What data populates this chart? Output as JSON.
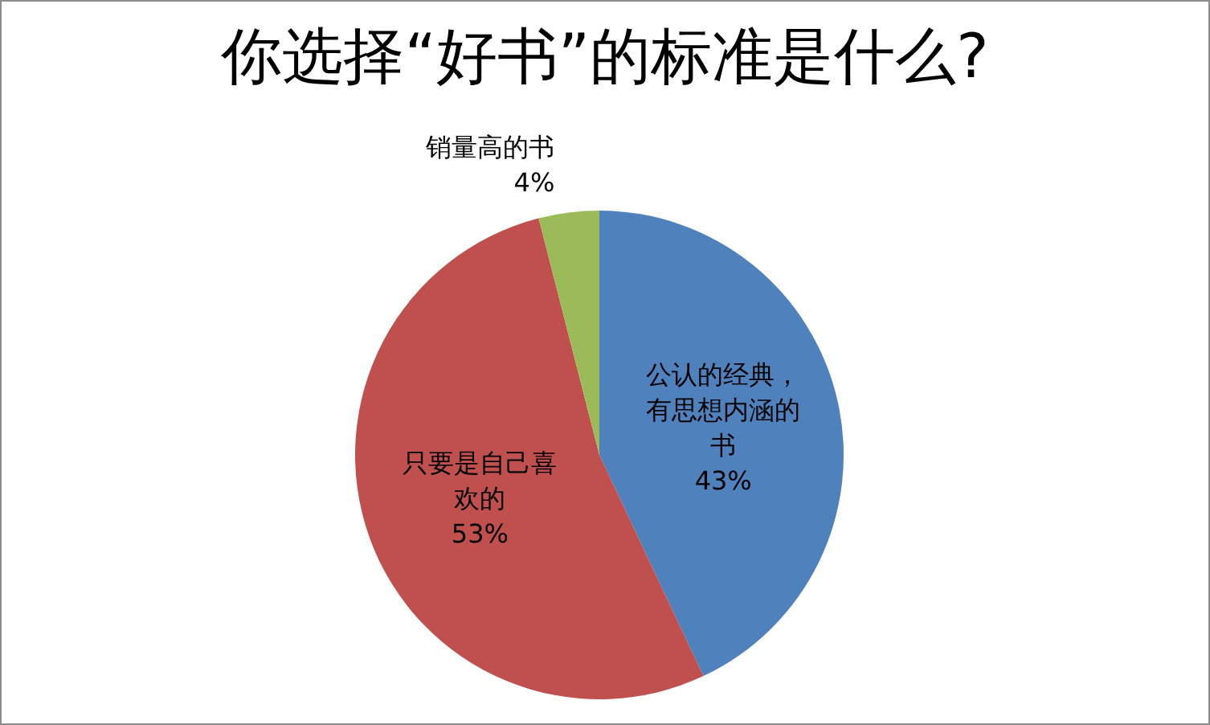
{
  "chart_data": {
    "type": "pie",
    "title": "你选择“好书”的标准是什么?",
    "categories": [
      "公认的经典，有思想内涵的书",
      "只要是自己喜欢的",
      "销量高的书"
    ],
    "values": [
      43,
      53,
      4
    ],
    "colors": [
      "#4f81bd",
      "#c0504d",
      "#9bbb59"
    ],
    "value_labels": [
      "43%",
      "53%",
      "4%"
    ]
  }
}
